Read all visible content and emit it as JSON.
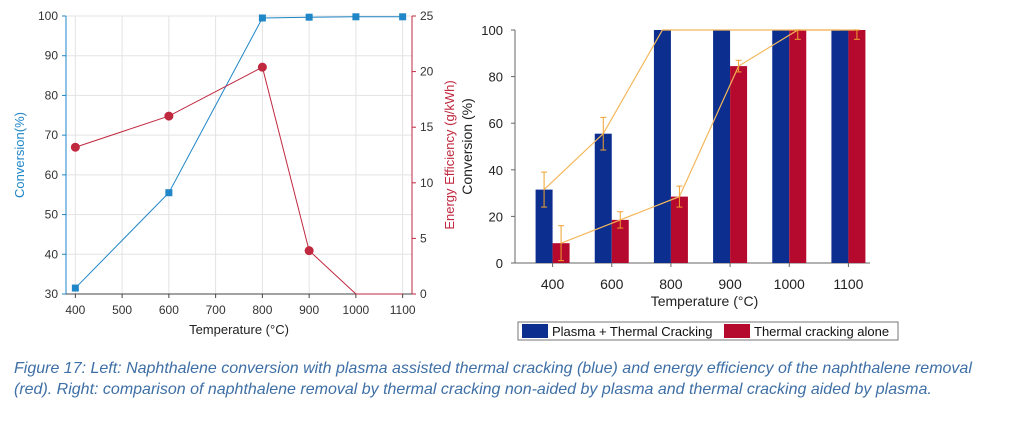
{
  "caption": "Figure 17: Left: Naphthalene conversion with plasma assisted thermal cracking (blue) and energy efficiency of the naphthalene removal (red). Right: comparison of naphthalene removal by thermal cracking non-aided by plasma and thermal cracking aided by plasma.",
  "colors": {
    "left_conversion": "#1f86c8",
    "left_efficiency": "#c0283f",
    "bar_plasma": "#0c2f8f",
    "bar_thermal": "#b5092d",
    "trend_line": "#f4b85c",
    "error_bar": "#f0a030"
  },
  "chart_data": [
    {
      "type": "line",
      "x": [
        400,
        600,
        800,
        900,
        1000,
        1100
      ],
      "xlabel": "Temperature (°C)",
      "xlim": [
        380,
        1120
      ],
      "xticks": [
        400,
        500,
        600,
        700,
        800,
        900,
        1000,
        1100
      ],
      "ylabel": "Conversion(%)",
      "ylim": [
        30,
        100
      ],
      "yticks": [
        30,
        40,
        50,
        60,
        70,
        80,
        90,
        100
      ],
      "y2label": "Energy Efficiency (g/kWh)",
      "y2lim": [
        0,
        25
      ],
      "y2ticks": [
        0,
        5,
        10,
        15,
        20,
        25
      ],
      "grid": true,
      "series": [
        {
          "axis": "left",
          "marker": "square",
          "x": [
            400,
            600,
            800,
            900,
            1000,
            1100
          ],
          "values": [
            31.5,
            55.5,
            99.5,
            99.7,
            99.8,
            99.8
          ]
        },
        {
          "axis": "right",
          "marker": "circle",
          "x": [
            400,
            600,
            800,
            900
          ],
          "values": [
            13.2,
            16.0,
            20.4,
            3.9
          ]
        },
        {
          "axis": "right",
          "marker": "none",
          "x": [
            900,
            1000,
            1100
          ],
          "values": [
            3.9,
            0,
            0
          ]
        }
      ]
    },
    {
      "type": "bar",
      "categories": [
        "400",
        "600",
        "800",
        "900",
        "1000",
        "1100"
      ],
      "xlabel": "Temperature (°C)",
      "ylabel": "Conversion (%)",
      "ylim": [
        0,
        100
      ],
      "yticks": [
        0,
        20,
        40,
        60,
        80,
        100
      ],
      "legend_position": "bottom",
      "series": [
        {
          "name": "Plasma + Thermal Cracking",
          "values": [
            31.5,
            55.5,
            100,
            100,
            100,
            100
          ],
          "errors": [
            7.5,
            7,
            0,
            0,
            0,
            0
          ]
        },
        {
          "name": "Thermal cracking alone",
          "values": [
            8.5,
            18.5,
            28.5,
            84.5,
            100,
            100
          ],
          "errors": [
            7.5,
            3.5,
            4.5,
            2.5,
            4,
            4
          ]
        }
      ]
    }
  ]
}
